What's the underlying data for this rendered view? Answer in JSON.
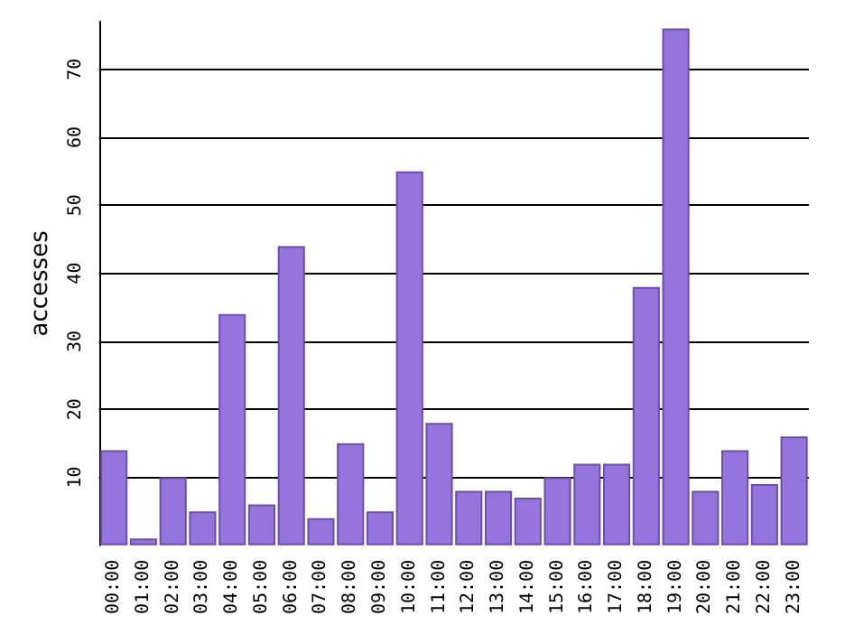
{
  "chart_data": {
    "type": "bar",
    "ylabel": "accesses",
    "categories": [
      "00:00",
      "01:00",
      "02:00",
      "03:00",
      "04:00",
      "05:00",
      "06:00",
      "07:00",
      "08:00",
      "09:00",
      "10:00",
      "11:00",
      "12:00",
      "13:00",
      "14:00",
      "15:00",
      "16:00",
      "17:00",
      "18:00",
      "19:00",
      "20:00",
      "21:00",
      "22:00",
      "23:00"
    ],
    "values": [
      14,
      1,
      10,
      5,
      34,
      6,
      44,
      4,
      15,
      5,
      55,
      18,
      8,
      8,
      7,
      10,
      12,
      12,
      38,
      76,
      8,
      14,
      9,
      16
    ],
    "color": "#9575dd",
    "ylim": [
      0,
      77
    ],
    "yticks": [
      10,
      20,
      30,
      40,
      50,
      60,
      70
    ],
    "grid": "y"
  }
}
